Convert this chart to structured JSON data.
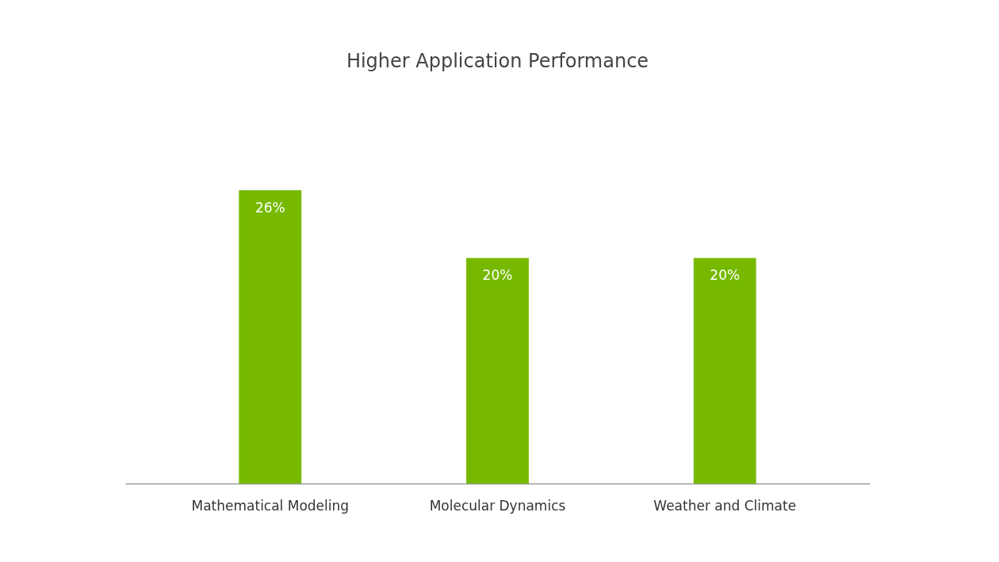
{
  "chart_data": {
    "type": "bar",
    "title": "Higher Application Performance",
    "categories": [
      "Mathematical Modeling",
      "Molecular Dynamics",
      "Weather and Climate"
    ],
    "values": [
      26,
      20,
      20
    ],
    "value_labels": [
      "26%",
      "20%",
      "20%"
    ],
    "color": "#76b900"
  }
}
